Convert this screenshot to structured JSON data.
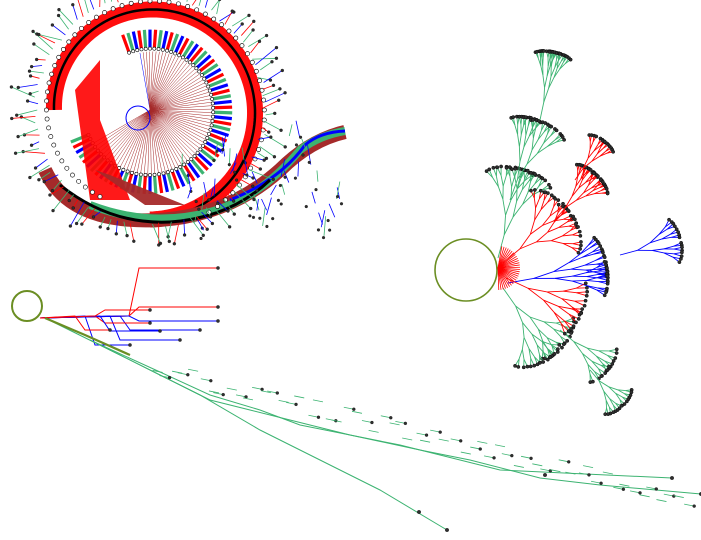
{
  "colors": {
    "background": "#ffffff",
    "red": "#ff0000",
    "green": "#3cb371",
    "blue": "#0000ff",
    "darkred": "#a52a2a",
    "olive": "#6b8e23",
    "node_fill": "#2f2f2f",
    "node_stroke": "#000000"
  },
  "panels": [
    {
      "id": "spiral-tree",
      "layout": "radial-spiral",
      "branch_colors": [
        "red",
        "green",
        "blue",
        "darkred"
      ]
    },
    {
      "id": "fan-tree",
      "layout": "radial-fan",
      "branch_colors": [
        "green",
        "red",
        "blue"
      ]
    },
    {
      "id": "long-tree",
      "layout": "horizontal-stretched",
      "branch_colors": [
        "red",
        "blue",
        "green"
      ]
    }
  ]
}
